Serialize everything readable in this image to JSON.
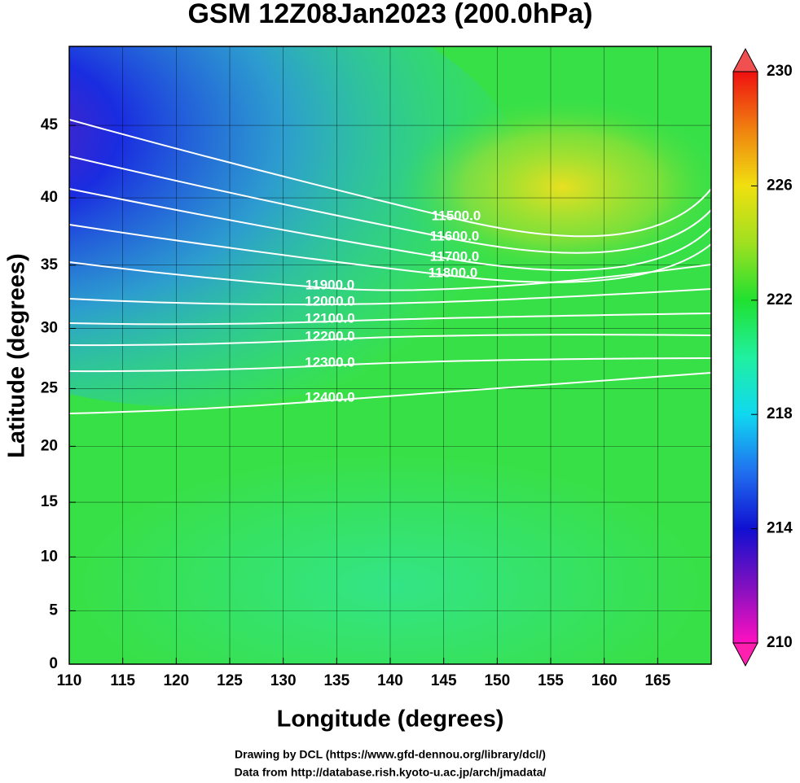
{
  "chart_data": {
    "type": "contour",
    "title": "GSM 12Z08Jan2023 (200.0hPa)",
    "x_label": "Longitude (degrees)",
    "y_label": "Latitude  (degrees)",
    "projection": "mercator",
    "xlim": [
      110,
      170
    ],
    "ylim": [
      0,
      50
    ],
    "xticks": [
      110,
      115,
      120,
      125,
      130,
      135,
      140,
      145,
      150,
      155,
      160,
      165
    ],
    "yticks": [
      0,
      5,
      10,
      15,
      20,
      25,
      30,
      35,
      40,
      45
    ],
    "grid": true,
    "colorbar": {
      "lim": [
        210,
        230
      ],
      "ticks": [
        210,
        214,
        218,
        222,
        226,
        230
      ]
    },
    "contours": [
      {
        "value": 11500,
        "label": "11500.0"
      },
      {
        "value": 11600,
        "label": "11600.0"
      },
      {
        "value": 11700,
        "label": "11700.0"
      },
      {
        "value": 11800,
        "label": "11800.0"
      },
      {
        "value": 11900,
        "label": "11900.0"
      },
      {
        "value": 12000,
        "label": "12000.0"
      },
      {
        "value": 12100,
        "label": "12100.0"
      },
      {
        "value": 12200,
        "label": "12200.0"
      },
      {
        "value": 12300,
        "label": "12300.0"
      },
      {
        "value": 12400,
        "label": "12400.0"
      }
    ],
    "footer": [
      "Drawing by DCL (https://www.gfd-dennou.org/library/dcl/)",
      "Data from http://database.rish.kyoto-u.ac.jp/arch/jmadata/"
    ]
  }
}
